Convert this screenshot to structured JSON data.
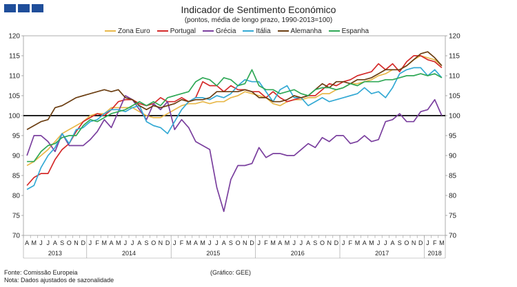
{
  "header": {
    "title": "Indicador de Sentimento Económico",
    "subtitle": "(pontos, média de longo prazo, 1990-2013=100)"
  },
  "footer": {
    "source": "Fonte: Comissão Europeia",
    "note": "Nota: Dados ajustados de sazonalidade",
    "graph": "(Gráfico: GEE)"
  },
  "chart_data": {
    "type": "line",
    "ylim": [
      70,
      120
    ],
    "yticks": [
      70,
      75,
      80,
      85,
      90,
      95,
      100,
      105,
      110,
      115,
      120
    ],
    "reference_line": 100,
    "x": [
      "A",
      "M",
      "J",
      "J",
      "A",
      "S",
      "O",
      "N",
      "D",
      "J",
      "F",
      "M",
      "A",
      "M",
      "J",
      "J",
      "A",
      "S",
      "O",
      "N",
      "D",
      "J",
      "F",
      "M",
      "A",
      "M",
      "J",
      "J",
      "A",
      "S",
      "O",
      "N",
      "D",
      "J",
      "F",
      "M",
      "A",
      "M",
      "J",
      "J",
      "A",
      "S",
      "O",
      "N",
      "D",
      "J",
      "F",
      "M",
      "A",
      "M",
      "J",
      "J",
      "A",
      "S",
      "O",
      "N",
      "D",
      "J",
      "F",
      "M"
    ],
    "year_labels": [
      {
        "label": "2013",
        "start": 0,
        "end": 8
      },
      {
        "label": "2014",
        "start": 9,
        "end": 20
      },
      {
        "label": "2015",
        "start": 21,
        "end": 32
      },
      {
        "label": "2016",
        "start": 33,
        "end": 44
      },
      {
        "label": "2017",
        "start": 45,
        "end": 56
      },
      {
        "label": "2018",
        "start": 57,
        "end": 59
      }
    ],
    "series": [
      {
        "name": "Zona Euro",
        "color": "#e8b84a",
        "values": [
          87.5,
          88.5,
          90.0,
          91.5,
          93.5,
          95.5,
          96.5,
          97.5,
          98.5,
          100.0,
          100.5,
          100.5,
          102.0,
          102.0,
          102.0,
          102.0,
          101.0,
          100.0,
          99.5,
          99.5,
          100.5,
          101.5,
          102.5,
          103.0,
          103.0,
          103.5,
          103.0,
          103.5,
          103.5,
          104.5,
          105.0,
          106.0,
          105.5,
          105.0,
          104.5,
          103.0,
          102.5,
          103.5,
          104.0,
          104.0,
          104.5,
          104.5,
          105.5,
          105.5,
          106.5,
          107.0,
          108.0,
          108.0,
          108.5,
          109.0,
          110.0,
          110.5,
          111.5,
          111.5,
          112.5,
          114.0,
          115.0,
          114.5,
          114.0,
          112.5
        ]
      },
      {
        "name": "Portugal",
        "color": "#d42a2a",
        "values": [
          82.5,
          84.5,
          85.5,
          85.5,
          89.0,
          91.5,
          93.0,
          96.0,
          98.5,
          99.5,
          100.5,
          100.0,
          101.5,
          103.5,
          104.0,
          104.0,
          103.0,
          102.5,
          103.0,
          104.5,
          103.5,
          103.5,
          104.5,
          103.5,
          104.5,
          108.5,
          107.5,
          107.5,
          106.0,
          107.5,
          106.5,
          106.5,
          106.0,
          106.0,
          104.5,
          106.0,
          104.5,
          103.5,
          104.0,
          104.5,
          105.0,
          105.0,
          106.5,
          108.0,
          107.5,
          108.5,
          109.0,
          110.0,
          110.5,
          111.0,
          113.0,
          111.5,
          113.0,
          111.0,
          113.5,
          115.0,
          115.0,
          114.0,
          113.5,
          112.0
        ]
      },
      {
        "name": "Grécia",
        "color": "#7a3f9e",
        "values": [
          90.0,
          95.0,
          95.0,
          93.5,
          91.0,
          95.5,
          92.5,
          92.5,
          92.5,
          94.0,
          96.0,
          99.0,
          97.0,
          101.0,
          105.0,
          104.0,
          101.5,
          99.0,
          103.0,
          101.5,
          103.5,
          96.5,
          99.0,
          97.0,
          93.5,
          92.5,
          91.5,
          82.0,
          76.0,
          84.0,
          87.5,
          87.5,
          88.0,
          92.0,
          89.5,
          90.5,
          90.5,
          90.0,
          90.0,
          91.5,
          93.0,
          92.0,
          94.5,
          93.5,
          95.0,
          95.0,
          93.0,
          93.5,
          95.0,
          93.5,
          94.0,
          98.5,
          99.0,
          100.5,
          98.5,
          98.5,
          101.0,
          101.5,
          104.0,
          100.0
        ]
      },
      {
        "name": "Itália",
        "color": "#33a9d4",
        "values": [
          81.5,
          82.5,
          87.0,
          90.0,
          92.0,
          95.5,
          93.0,
          96.5,
          97.0,
          98.5,
          99.0,
          100.5,
          101.5,
          101.5,
          101.0,
          102.0,
          102.5,
          98.5,
          97.5,
          97.0,
          95.5,
          98.5,
          101.5,
          103.5,
          104.5,
          104.5,
          104.0,
          105.0,
          104.5,
          105.5,
          107.5,
          109.0,
          108.5,
          108.5,
          106.0,
          103.5,
          106.5,
          107.5,
          104.5,
          104.5,
          102.5,
          103.5,
          104.5,
          103.5,
          104.0,
          104.5,
          105.0,
          105.5,
          107.0,
          105.5,
          106.0,
          104.5,
          107.0,
          110.5,
          111.5,
          112.0,
          112.0,
          110.0,
          111.5,
          109.5
        ]
      },
      {
        "name": "Alemanha",
        "color": "#6b3e12",
        "values": [
          96.5,
          97.5,
          98.5,
          99.0,
          102.0,
          102.5,
          103.5,
          104.5,
          105.0,
          105.5,
          106.0,
          106.5,
          106.0,
          106.5,
          104.5,
          104.0,
          102.5,
          101.5,
          102.5,
          102.0,
          102.5,
          103.0,
          104.0,
          103.5,
          104.0,
          104.0,
          104.5,
          106.0,
          106.0,
          106.0,
          106.0,
          106.5,
          106.0,
          104.5,
          104.5,
          103.5,
          103.5,
          104.0,
          105.0,
          104.5,
          105.0,
          106.5,
          108.0,
          107.0,
          108.5,
          108.5,
          108.0,
          109.0,
          109.0,
          109.5,
          110.5,
          111.5,
          111.5,
          111.5,
          112.5,
          114.0,
          115.5,
          116.0,
          114.5,
          112.5
        ]
      },
      {
        "name": "Espanha",
        "color": "#2fa856",
        "values": [
          88.5,
          88.5,
          91.0,
          92.5,
          93.0,
          94.5,
          95.0,
          95.0,
          97.5,
          99.0,
          98.5,
          99.5,
          100.5,
          101.0,
          101.5,
          102.5,
          103.5,
          102.5,
          103.5,
          102.5,
          104.5,
          105.0,
          105.5,
          106.0,
          108.5,
          109.5,
          109.0,
          107.5,
          109.5,
          109.0,
          107.5,
          108.0,
          111.5,
          107.5,
          106.5,
          106.5,
          105.5,
          106.0,
          106.5,
          105.5,
          105.0,
          106.5,
          107.0,
          107.0,
          106.5,
          107.0,
          108.0,
          107.5,
          108.5,
          108.5,
          108.5,
          109.0,
          109.0,
          109.5,
          110.0,
          110.0,
          110.5,
          110.0,
          110.5,
          109.5
        ]
      }
    ]
  }
}
